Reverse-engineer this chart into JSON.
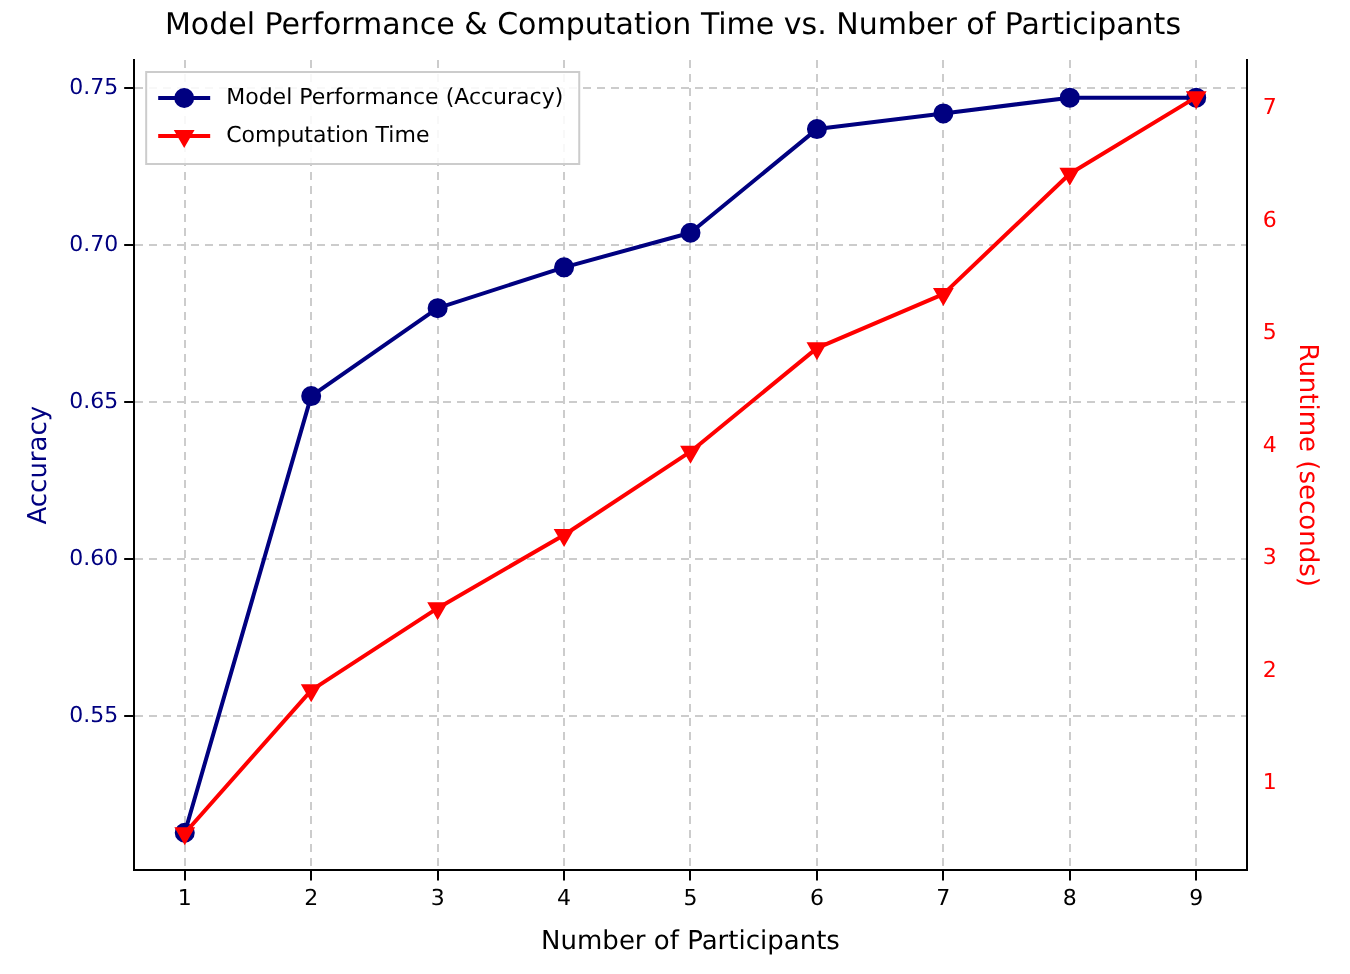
{
  "chart_data": {
    "type": "line",
    "title": "Model Performance & Computation Time vs. Number of Participants",
    "xlabel": "Number of Participants",
    "ylabel": "Accuracy",
    "y2label": "Runtime (seconds)",
    "x": [
      1,
      2,
      3,
      4,
      5,
      6,
      7,
      8,
      9
    ],
    "xlim": [
      0.6,
      9.4
    ],
    "xticks": [
      1,
      2,
      3,
      4,
      5,
      6,
      7,
      8,
      9
    ],
    "ylim": [
      0.501,
      0.759
    ],
    "yticks": [
      0.55,
      {
        "value": 0.6,
        "label": "0.60"
      },
      0.65,
      {
        "value": 0.7,
        "label": "0.70"
      },
      0.75
    ],
    "y2lim": [
      0.23,
      7.43
    ],
    "y2ticks": [
      1,
      2,
      3,
      4,
      5,
      6,
      7
    ],
    "grid": true,
    "legend": "top left",
    "line_style": "solid",
    "series": [
      {
        "name": "Model Performance (Accuracy)",
        "color": "#000080",
        "marker": "circle",
        "values": [
          0.513,
          0.652,
          0.68,
          0.693,
          0.704,
          0.737,
          0.742,
          0.747,
          0.747
        ]
      },
      {
        "name": "Computation Time",
        "color": "#ff0000",
        "marker": "triangle",
        "axis": "y2",
        "values": [
          0.56,
          1.83,
          2.56,
          3.21,
          3.95,
          4.87,
          5.35,
          6.42,
          7.1
        ]
      }
    ]
  }
}
